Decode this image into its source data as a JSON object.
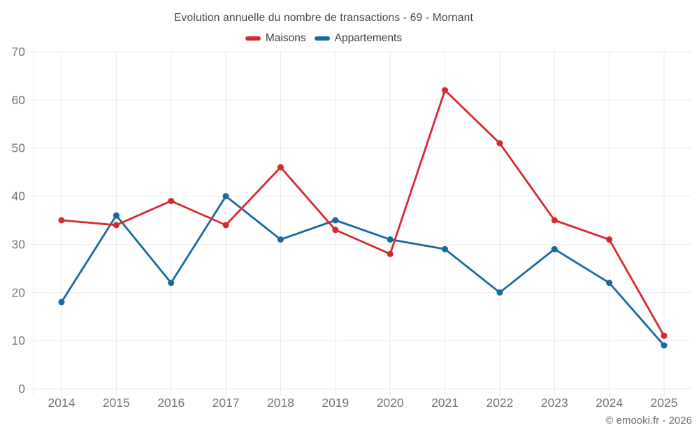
{
  "chart": {
    "title": "Evolution annuelle du nombre de transactions - 69 - Mornant",
    "footer": "© emooki.fr - 2026"
  },
  "colors": {
    "maisons": "#d6292e",
    "appartements": "#17699f",
    "grid": "#e9e9e9",
    "tick_label": "#757575",
    "title_text": "#444444",
    "background": "#ffffff"
  },
  "chart_data": {
    "type": "line",
    "title": "Evolution annuelle du nombre de transactions - 69 - Mornant",
    "categories": [
      "2014",
      "2015",
      "2016",
      "2017",
      "2018",
      "2019",
      "2020",
      "2021",
      "2022",
      "2023",
      "2024",
      "2025"
    ],
    "series": [
      {
        "name": "Maisons",
        "color": "#d6292e",
        "values": [
          35,
          34,
          39,
          34,
          46,
          33,
          28,
          62,
          51,
          35,
          31,
          11
        ]
      },
      {
        "name": "Appartements",
        "color": "#17699f",
        "values": [
          18,
          36,
          22,
          40,
          31,
          35,
          31,
          29,
          20,
          29,
          22,
          9
        ]
      }
    ],
    "xlabel": "",
    "ylabel": "",
    "ylim": [
      0,
      70
    ],
    "yticks": [
      0,
      10,
      20,
      30,
      40,
      50,
      60,
      70
    ],
    "grid": true,
    "legend_position": "top",
    "watermark": "© emooki.fr - 2026"
  }
}
